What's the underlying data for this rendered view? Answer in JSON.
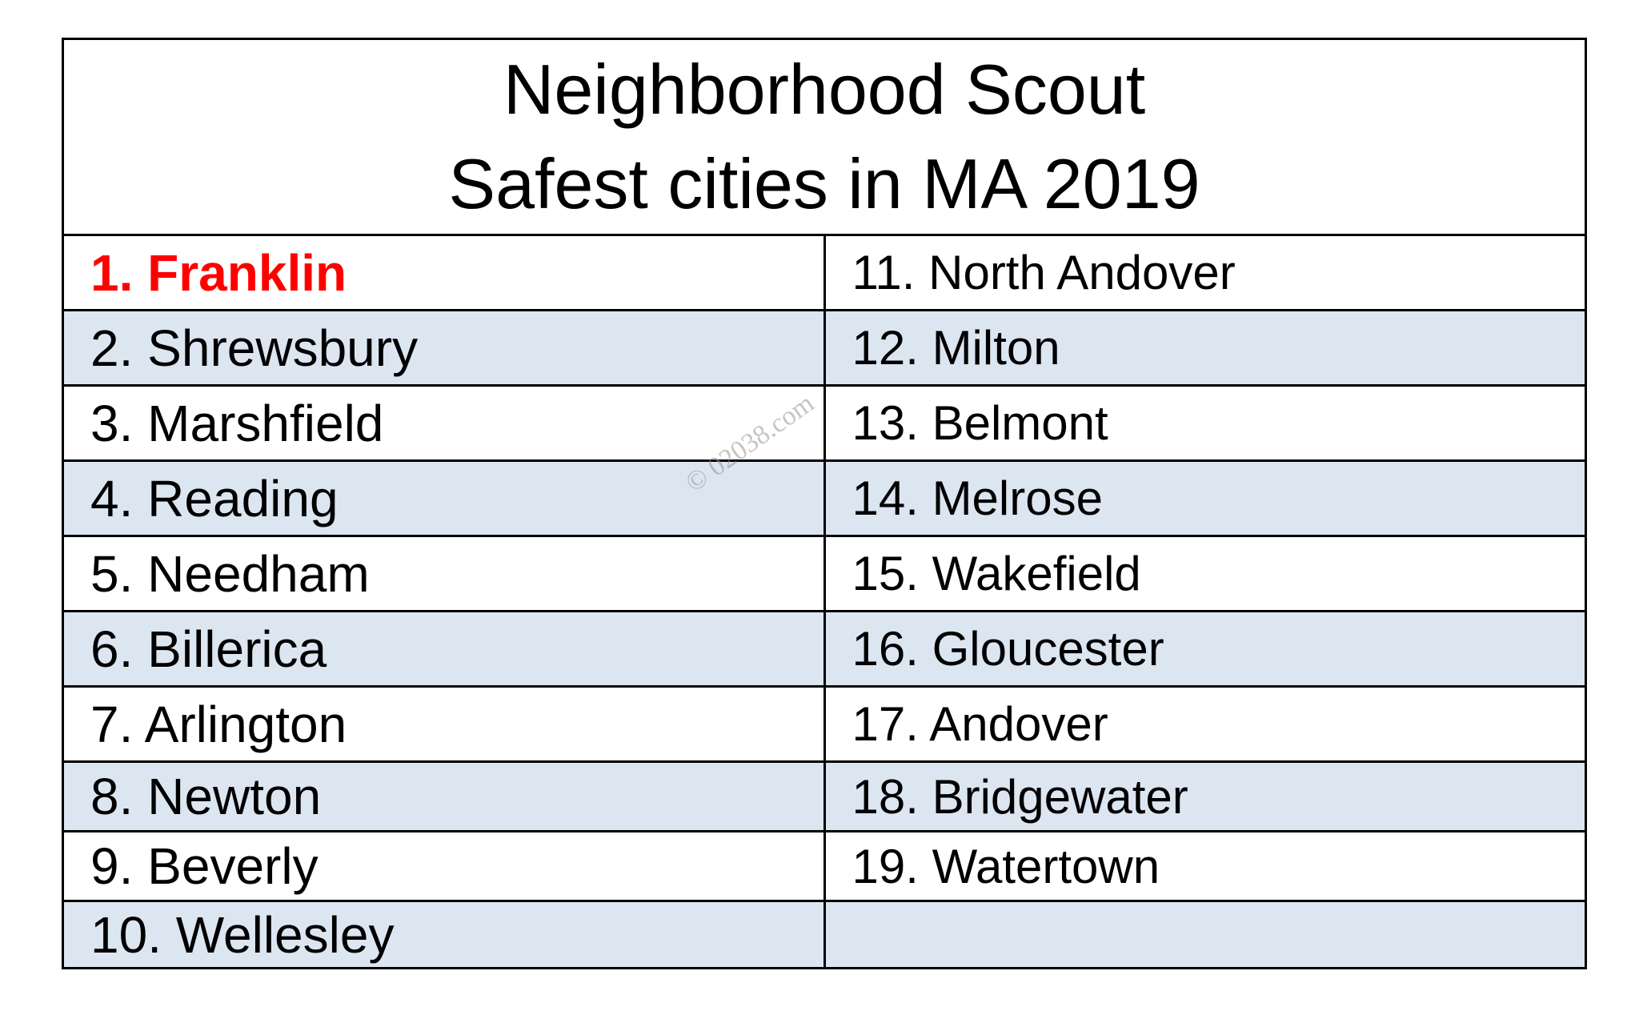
{
  "title": {
    "line1": "Neighborhood Scout",
    "line2": "Safest cities in MA 2019"
  },
  "left_column": [
    {
      "label": "1. Franklin",
      "highlight": true
    },
    {
      "label": "2. Shrewsbury"
    },
    {
      "label": "3. Marshfield"
    },
    {
      "label": "4. Reading"
    },
    {
      "label": "5. Needham"
    },
    {
      "label": "6. Billerica"
    },
    {
      "label": "7. Arlington"
    },
    {
      "label": "8. Newton"
    },
    {
      "label": "9. Beverly"
    },
    {
      "label": "10. Wellesley"
    }
  ],
  "right_column": [
    {
      "label": "11. North Andover"
    },
    {
      "label": "12. Milton"
    },
    {
      "label": "13. Belmont"
    },
    {
      "label": "14. Melrose"
    },
    {
      "label": "15. Wakefield"
    },
    {
      "label": "16. Gloucester"
    },
    {
      "label": "17. Andover"
    },
    {
      "label": "18. Bridgewater"
    },
    {
      "label": "19. Watertown"
    },
    {
      "label": ""
    }
  ],
  "watermark": "© 02038.com",
  "colors": {
    "highlight": "#ff0000",
    "shade": "#dce6f1",
    "border": "#000000"
  }
}
